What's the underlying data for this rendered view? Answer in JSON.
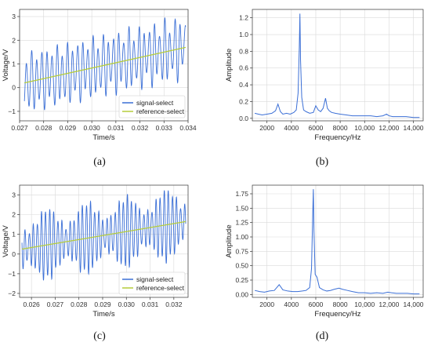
{
  "panel_labels": [
    "(a)",
    "(b)",
    "(c)",
    "(d)"
  ],
  "chart_data": [
    {
      "id": "a",
      "type": "line",
      "xlabel": "Time/s",
      "ylabel": "Voltage/V",
      "xlim": [
        0.027,
        0.034
      ],
      "ylim": [
        -1.4,
        3.3
      ],
      "xticks": [
        0.027,
        0.028,
        0.029,
        0.03,
        0.031,
        0.032,
        0.033,
        0.034
      ],
      "xtick_labels": [
        "0.027",
        "0.028",
        "0.029",
        "0.030",
        "0.031",
        "0.032",
        "0.033",
        "0.034"
      ],
      "yticks": [
        -1,
        0,
        1,
        2,
        3
      ],
      "ytick_labels": [
        "−1",
        "0",
        "1",
        "2",
        "3"
      ],
      "grid": true,
      "legend_position": "lower-right",
      "series": [
        {
          "name": "signal-select",
          "color": "#3b6fd6",
          "kind": "oscillation",
          "x_range": [
            0.0272,
            0.0339
          ],
          "offset_start": 0.2,
          "offset_end": 1.7,
          "amplitude": 1.45,
          "frequency_hz": 4700,
          "beat_hz": 2000
        },
        {
          "name": "reference-select",
          "color": "#b5cc3a",
          "kind": "linear",
          "x": [
            0.0272,
            0.0339
          ],
          "y": [
            0.2,
            1.7
          ]
        }
      ]
    },
    {
      "id": "b",
      "type": "line",
      "xlabel": "Frequency/Hz",
      "ylabel": "Amplitude",
      "xlim": [
        800,
        14800
      ],
      "ylim": [
        -0.03,
        1.3
      ],
      "xticks": [
        2000,
        4000,
        6000,
        8000,
        10000,
        12000,
        14000
      ],
      "xtick_labels": [
        "2000",
        "4000",
        "6000",
        "8000",
        "10,000",
        "12,000",
        "14,000"
      ],
      "yticks": [
        0.0,
        0.2,
        0.4,
        0.6,
        0.8,
        1.0,
        1.2
      ],
      "ytick_labels": [
        "0.0",
        "0.2",
        "0.4",
        "0.6",
        "0.8",
        "1.0",
        "1.2"
      ],
      "grid": true,
      "series": [
        {
          "name": "",
          "color": "#3b6fd6",
          "x": [
            1000,
            1300,
            1600,
            2000,
            2400,
            2700,
            2900,
            3100,
            3300,
            3600,
            3900,
            4200,
            4400,
            4550,
            4650,
            4700,
            4750,
            4850,
            5000,
            5200,
            5500,
            5800,
            6000,
            6200,
            6400,
            6600,
            6800,
            6950,
            7100,
            7300,
            7600,
            8000,
            8500,
            9000,
            9500,
            10000,
            10500,
            11000,
            11500,
            11800,
            12000,
            12300,
            12800,
            13400,
            14000,
            14500
          ],
          "y": [
            0.06,
            0.05,
            0.04,
            0.05,
            0.06,
            0.09,
            0.17,
            0.08,
            0.05,
            0.06,
            0.05,
            0.07,
            0.1,
            0.3,
            0.85,
            1.25,
            0.7,
            0.25,
            0.1,
            0.08,
            0.06,
            0.07,
            0.15,
            0.1,
            0.08,
            0.12,
            0.24,
            0.12,
            0.09,
            0.07,
            0.06,
            0.05,
            0.04,
            0.03,
            0.03,
            0.03,
            0.03,
            0.02,
            0.03,
            0.05,
            0.03,
            0.02,
            0.02,
            0.02,
            0.01,
            0.01
          ]
        }
      ]
    },
    {
      "id": "c",
      "type": "line",
      "xlabel": "Time/s",
      "ylabel": "Voltage/V",
      "xlim": [
        0.0255,
        0.0326
      ],
      "ylim": [
        -2.2,
        3.5
      ],
      "xticks": [
        0.026,
        0.027,
        0.028,
        0.029,
        0.03,
        0.031,
        0.032
      ],
      "xtick_labels": [
        "0.026",
        "0.027",
        "0.028",
        "0.029",
        "0.030",
        "0.031",
        "0.032"
      ],
      "yticks": [
        -2,
        -1,
        0,
        1,
        2,
        3
      ],
      "ytick_labels": [
        "−2",
        "−1",
        "0",
        "1",
        "2",
        "3"
      ],
      "grid": true,
      "legend_position": "lower-right",
      "series": [
        {
          "name": "signal-select",
          "color": "#3b6fd6",
          "kind": "oscillation",
          "x_range": [
            0.0256,
            0.0325
          ],
          "offset_start": 0.3,
          "offset_end": 1.6,
          "amplitude": 1.75,
          "frequency_hz": 5800,
          "beat_hz": 600
        },
        {
          "name": "reference-select",
          "color": "#b5cc3a",
          "kind": "linear",
          "x": [
            0.0256,
            0.0325
          ],
          "y": [
            0.25,
            1.65
          ]
        }
      ]
    },
    {
      "id": "d",
      "type": "line",
      "xlabel": "Frequency/Hz",
      "ylabel": "Amplitude",
      "xlim": [
        800,
        14800
      ],
      "ylim": [
        -0.05,
        1.9
      ],
      "xticks": [
        2000,
        4000,
        6000,
        8000,
        10000,
        12000,
        14000
      ],
      "xtick_labels": [
        "2000",
        "4000",
        "6000",
        "8000",
        "10,000",
        "12,000",
        "14,000"
      ],
      "yticks": [
        0.0,
        0.25,
        0.5,
        0.75,
        1.0,
        1.25,
        1.5,
        1.75
      ],
      "ytick_labels": [
        "0.00",
        "0.25",
        "0.50",
        "0.75",
        "1.00",
        "1.25",
        "1.50",
        "1.75"
      ],
      "grid": true,
      "series": [
        {
          "name": "",
          "color": "#3b6fd6",
          "x": [
            1000,
            1400,
            1800,
            2200,
            2600,
            2800,
            3000,
            3300,
            3700,
            4100,
            4500,
            4900,
            5200,
            5500,
            5650,
            5750,
            5800,
            5850,
            5950,
            6100,
            6300,
            6600,
            6900,
            7200,
            7500,
            7700,
            7900,
            8200,
            8600,
            9000,
            9500,
            10000,
            10500,
            11000,
            11500,
            11900,
            12200,
            12600,
            13000,
            13500,
            14000,
            14500
          ],
          "y": [
            0.07,
            0.05,
            0.04,
            0.06,
            0.07,
            0.12,
            0.17,
            0.08,
            0.06,
            0.05,
            0.05,
            0.06,
            0.07,
            0.12,
            0.45,
            1.4,
            1.83,
            1.1,
            0.35,
            0.3,
            0.12,
            0.08,
            0.06,
            0.07,
            0.09,
            0.1,
            0.11,
            0.09,
            0.07,
            0.05,
            0.03,
            0.03,
            0.02,
            0.03,
            0.02,
            0.04,
            0.03,
            0.02,
            0.02,
            0.02,
            0.01,
            0.01
          ]
        }
      ]
    }
  ]
}
